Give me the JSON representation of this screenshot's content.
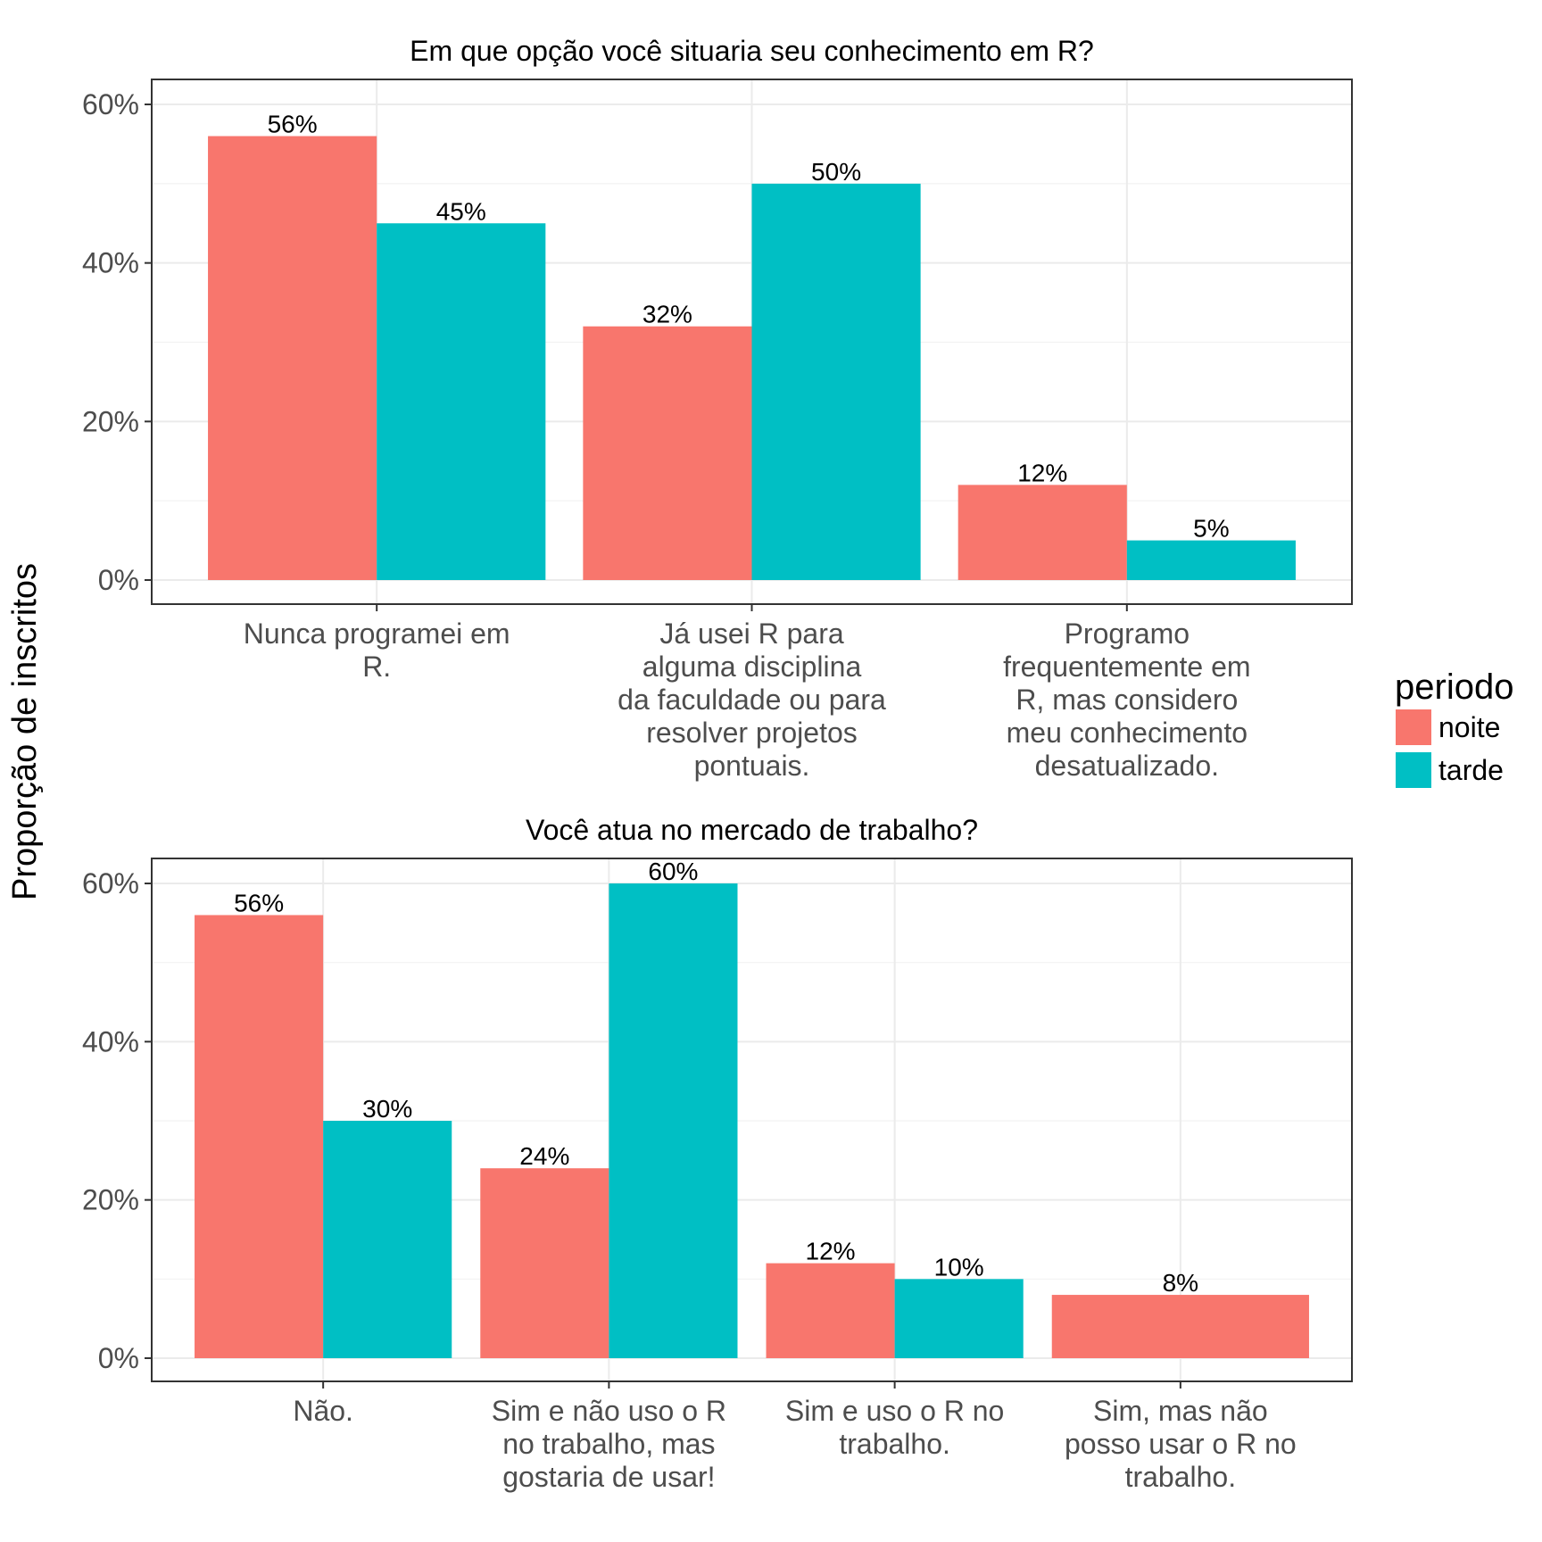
{
  "chart_data": {
    "ylabel": "Proporção de inscritos",
    "legend": {
      "title": "periodo",
      "position": "right",
      "entries": [
        {
          "name": "noite",
          "color": "#F8766D"
        },
        {
          "name": "tarde",
          "color": "#00BFC4"
        }
      ]
    },
    "panels": [
      {
        "type": "bar",
        "title": "Em que opção você situaria seu conhecimento em R?",
        "ylim": [
          0,
          0.6
        ],
        "yticks": [
          0,
          0.2,
          0.4,
          0.6
        ],
        "ytick_labels": [
          "0%",
          "20%",
          "40%",
          "60%"
        ],
        "grid": true,
        "categories": [
          "Nunca programei em\nR.",
          "Já usei R para\nalguma disciplina\nda faculdade ou para\nresolver projetos\npontuais.",
          "Programo\nfrequentemente em\nR, mas considero\nmeu conhecimento\ndesatualizado."
        ],
        "series": [
          {
            "name": "noite",
            "values": [
              0.56,
              0.32,
              0.12
            ],
            "labels": [
              "56%",
              "32%",
              "12%"
            ]
          },
          {
            "name": "tarde",
            "values": [
              0.45,
              0.5,
              0.05
            ],
            "labels": [
              "45%",
              "50%",
              "5%"
            ]
          }
        ]
      },
      {
        "type": "bar",
        "title": "Você atua no mercado de trabalho?",
        "ylim": [
          0,
          0.6
        ],
        "yticks": [
          0,
          0.2,
          0.4,
          0.6
        ],
        "ytick_labels": [
          "0%",
          "20%",
          "40%",
          "60%"
        ],
        "grid": true,
        "categories": [
          "Não.",
          "Sim e não uso o R\nno trabalho, mas\ngostaria de usar!",
          "Sim e uso o R no\ntrabalho.",
          "Sim, mas não\nposso usar o R no\ntrabalho."
        ],
        "series": [
          {
            "name": "noite",
            "values": [
              0.56,
              0.24,
              0.12,
              0.08
            ],
            "labels": [
              "56%",
              "24%",
              "12%",
              "8%"
            ]
          },
          {
            "name": "tarde",
            "values": [
              0.3,
              0.6,
              0.1,
              null
            ],
            "labels": [
              "30%",
              "60%",
              "10%",
              null
            ]
          }
        ]
      }
    ]
  }
}
